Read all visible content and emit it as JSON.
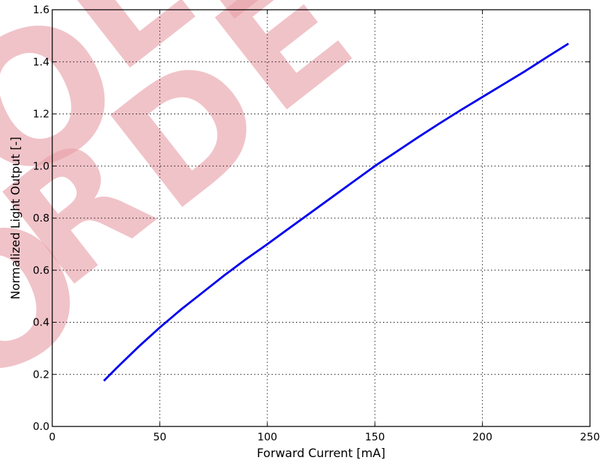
{
  "watermark": {
    "text": "OLD ORDER",
    "color": "#e8a0a8"
  },
  "chart_data": {
    "type": "line",
    "title": "",
    "xlabel": "Forward Current [mA]",
    "ylabel": "Normalized Light Output [-]",
    "xlim": [
      0,
      250
    ],
    "ylim": [
      0,
      1.6
    ],
    "xticks": [
      0,
      50,
      100,
      150,
      200,
      250
    ],
    "yticks": [
      0.0,
      0.2,
      0.4,
      0.6,
      0.8,
      1.0,
      1.2,
      1.4,
      1.6
    ],
    "xtick_labels": [
      "0",
      "50",
      "100",
      "150",
      "200",
      "250"
    ],
    "ytick_labels": [
      "0.0",
      "0.2",
      "0.4",
      "0.6",
      "0.8",
      "1.0",
      "1.2",
      "1.4",
      "1.6"
    ],
    "grid": true,
    "series": [
      {
        "color": "#0000ee",
        "x": [
          24,
          30,
          40,
          50,
          60,
          70,
          80,
          90,
          100,
          110,
          120,
          130,
          140,
          150,
          160,
          170,
          180,
          190,
          200,
          210,
          220,
          230,
          240
        ],
        "y": [
          0.175,
          0.225,
          0.305,
          0.38,
          0.45,
          0.515,
          0.58,
          0.642,
          0.7,
          0.76,
          0.82,
          0.88,
          0.94,
          1.0,
          1.055,
          1.11,
          1.163,
          1.215,
          1.265,
          1.315,
          1.365,
          1.418,
          1.47
        ]
      }
    ]
  }
}
